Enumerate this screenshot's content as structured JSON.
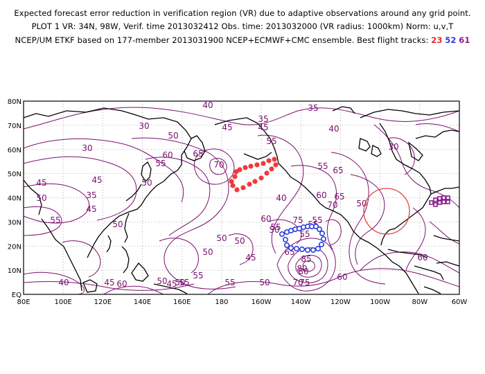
{
  "header": {
    "line1": "Expected forecast error reduction in verification region (VR) due to adaptive observations around any grid point.",
    "line2": "PLOT 1 VR: 34N, 98W, Verif. time 2013032412 Obs. time: 2013032000 (VR radius: 1000km) Norm: u,v,T",
    "line3_prefix": "NCEP/UM ETKF based on 177-member 2013031900 NCEP+ECMWF+CMC ensemble. Best flight tracks:",
    "tracks": [
      "23",
      "52",
      "61"
    ]
  },
  "colors": {
    "contour": "#7a0f6e",
    "coast": "#000000",
    "grid": "#9a9a9a",
    "track_23": "#f03a3a",
    "track_52": "#2a3ee0",
    "track_61": "#8c1a8c",
    "verification_circle": "#e84040"
  },
  "map": {
    "lat_labels": [
      "80N",
      "70N",
      "60N",
      "50N",
      "40N",
      "30N",
      "20N",
      "10N",
      "EQ"
    ],
    "lon_labels": [
      "80E",
      "100E",
      "120E",
      "140E",
      "160E",
      "180",
      "160W",
      "140W",
      "120W",
      "100W",
      "80W",
      "60W"
    ],
    "contour_labels": [
      "40",
      "35",
      "30",
      "45",
      "35",
      "45",
      "50",
      "55",
      "55",
      "50",
      "60",
      "65",
      "70",
      "65",
      "55",
      "40",
      "30",
      "50",
      "45",
      "45",
      "50",
      "35",
      "50",
      "55",
      "55",
      "40",
      "30",
      "45",
      "55",
      "50",
      "50",
      "60",
      "50",
      "50",
      "55",
      "65",
      "60",
      "65",
      "70",
      "55",
      "75",
      "80",
      "85",
      "80",
      "75",
      "70",
      "60",
      "50",
      "45",
      "55",
      "55",
      "45",
      "55",
      "50",
      "60",
      "50",
      "40",
      "45",
      "60"
    ]
  }
}
